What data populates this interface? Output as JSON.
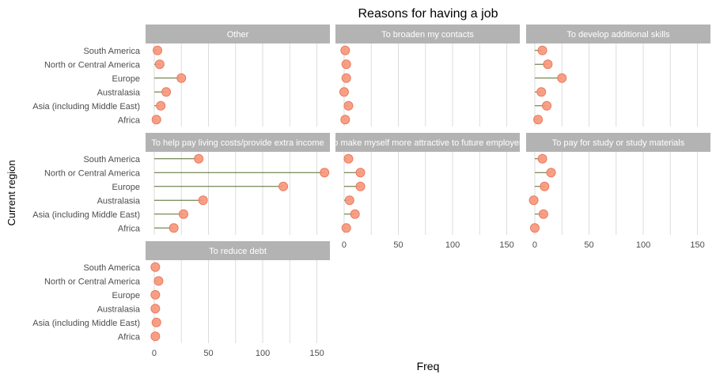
{
  "chart_data": {
    "type": "lollipop",
    "title": "Reasons for having a job",
    "xlabel": "Freq",
    "ylabel": "Current region",
    "xlim": [
      -8,
      162
    ],
    "x_ticks": [
      0,
      50,
      100,
      150
    ],
    "grid": true,
    "regions": [
      "South America",
      "North or Central America",
      "Europe",
      "Australasia",
      "Asia (including Middle East)",
      "Africa"
    ],
    "panels": [
      {
        "name": "Other",
        "values": [
          3,
          5,
          25,
          11,
          6,
          2
        ]
      },
      {
        "name": "To broaden my contacts",
        "values": [
          1,
          2,
          2,
          0,
          4,
          1
        ]
      },
      {
        "name": "To develop additional skills",
        "values": [
          7,
          12,
          25,
          6,
          11,
          3
        ]
      },
      {
        "name": "To help pay living costs/provide extra income",
        "values": [
          41,
          157,
          119,
          45,
          27,
          18
        ]
      },
      {
        "name": "To make myself more attractive to future employers",
        "values": [
          4,
          15,
          15,
          5,
          10,
          2
        ]
      },
      {
        "name": "To pay for study or study materials",
        "values": [
          7,
          15,
          9,
          -1,
          8,
          0
        ]
      },
      {
        "name": "To reduce debt",
        "values": [
          1,
          4,
          1,
          1,
          2,
          1
        ]
      }
    ],
    "colors": {
      "point_fill": "#f7967a",
      "point_stroke": "#ea7a5c",
      "segment": "#556b2f",
      "strip_bg": "#b3b3b3",
      "strip_text": "#ffffff",
      "grid": "#dcdcdc",
      "axis_text": "#4d4d4d"
    }
  }
}
